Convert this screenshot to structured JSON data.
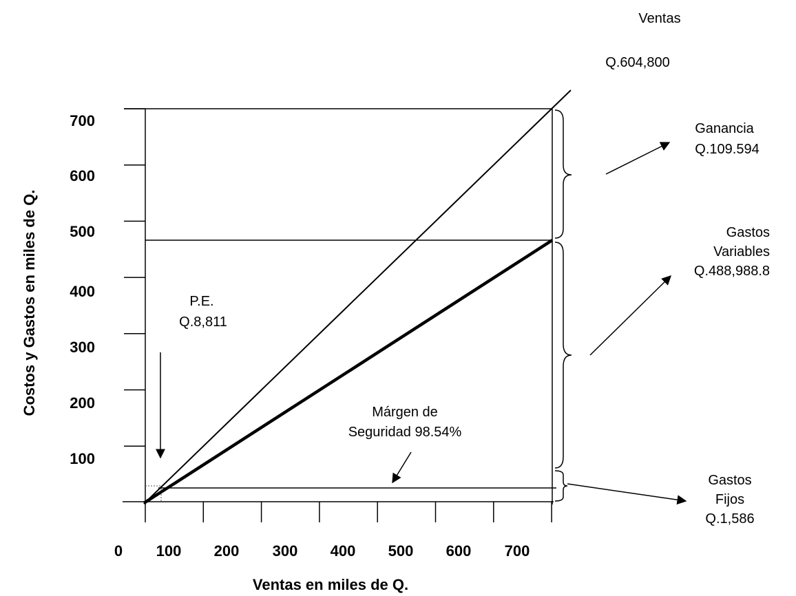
{
  "chart_data": {
    "type": "line",
    "title": "",
    "xlabel": "Ventas en miles de Q.",
    "ylabel": "Costos y Gastos en miles de Q.",
    "x_ticks": [
      "0",
      "100",
      "200",
      "300",
      "400",
      "500",
      "600",
      "700"
    ],
    "y_ticks": [
      "100",
      "200",
      "300",
      "400",
      "500",
      "600",
      "700"
    ],
    "xlim": [
      0,
      700
    ],
    "ylim": [
      0,
      700
    ],
    "sales_line": {
      "x": [
        0,
        700
      ],
      "y": [
        0,
        700
      ]
    },
    "total_cost_line": {
      "x": [
        0,
        700
      ],
      "y": [
        0,
        476
      ]
    },
    "fixed_costs_level": 25,
    "total_costs_level": 476,
    "max_sales_level": 700,
    "break_even_point": {
      "x": 25,
      "y": 25
    },
    "annotations": {
      "ventas": "Ventas",
      "ventas_value": "Q.604,800",
      "ganancia": "Ganancia",
      "ganancia_value": "Q.109.594",
      "gastos_variables_1": "Gastos",
      "gastos_variables_2": "Variables",
      "gastos_variables_value": "Q.488,988.8",
      "pe_label": "P.E.",
      "pe_value": "Q.8,811",
      "margen_1": "Márgen de",
      "margen_2": "Seguridad 98.54%",
      "gastos_fijos_1": "Gastos",
      "gastos_fijos_2": "Fijos",
      "gastos_fijos_value": "Q.1,586"
    }
  }
}
